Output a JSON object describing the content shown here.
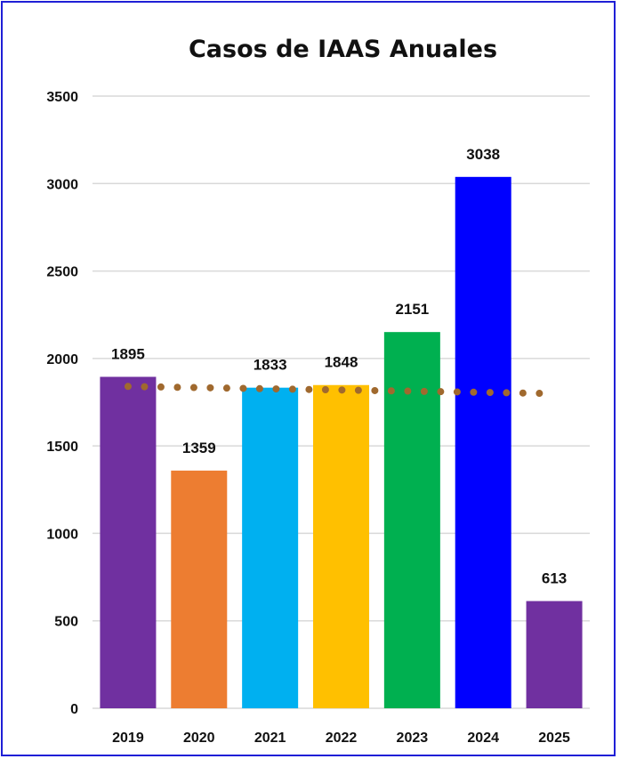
{
  "chart_data": {
    "type": "bar",
    "title": "Casos de IAAS Anuales",
    "xlabel": "",
    "ylabel": "",
    "categories": [
      "2019",
      "2020",
      "2021",
      "2022",
      "2023",
      "2024",
      "2025"
    ],
    "values": [
      1895,
      1359,
      1833,
      1848,
      2151,
      3038,
      613
    ],
    "colors": [
      "#7030a0",
      "#ed7d31",
      "#00b0f0",
      "#ffc000",
      "#00b050",
      "#0000ff",
      "#7030a0"
    ],
    "ylim": [
      0,
      3500
    ],
    "yticks": [
      0,
      500,
      1000,
      1500,
      2000,
      2500,
      3000,
      3500
    ],
    "grid": true,
    "data_labels": true,
    "trendline": {
      "type": "linear",
      "style": "dotted",
      "color": "#a0692e",
      "start_value": 1840,
      "end_value": 1800
    },
    "frame_color": "#1f1fd6"
  }
}
